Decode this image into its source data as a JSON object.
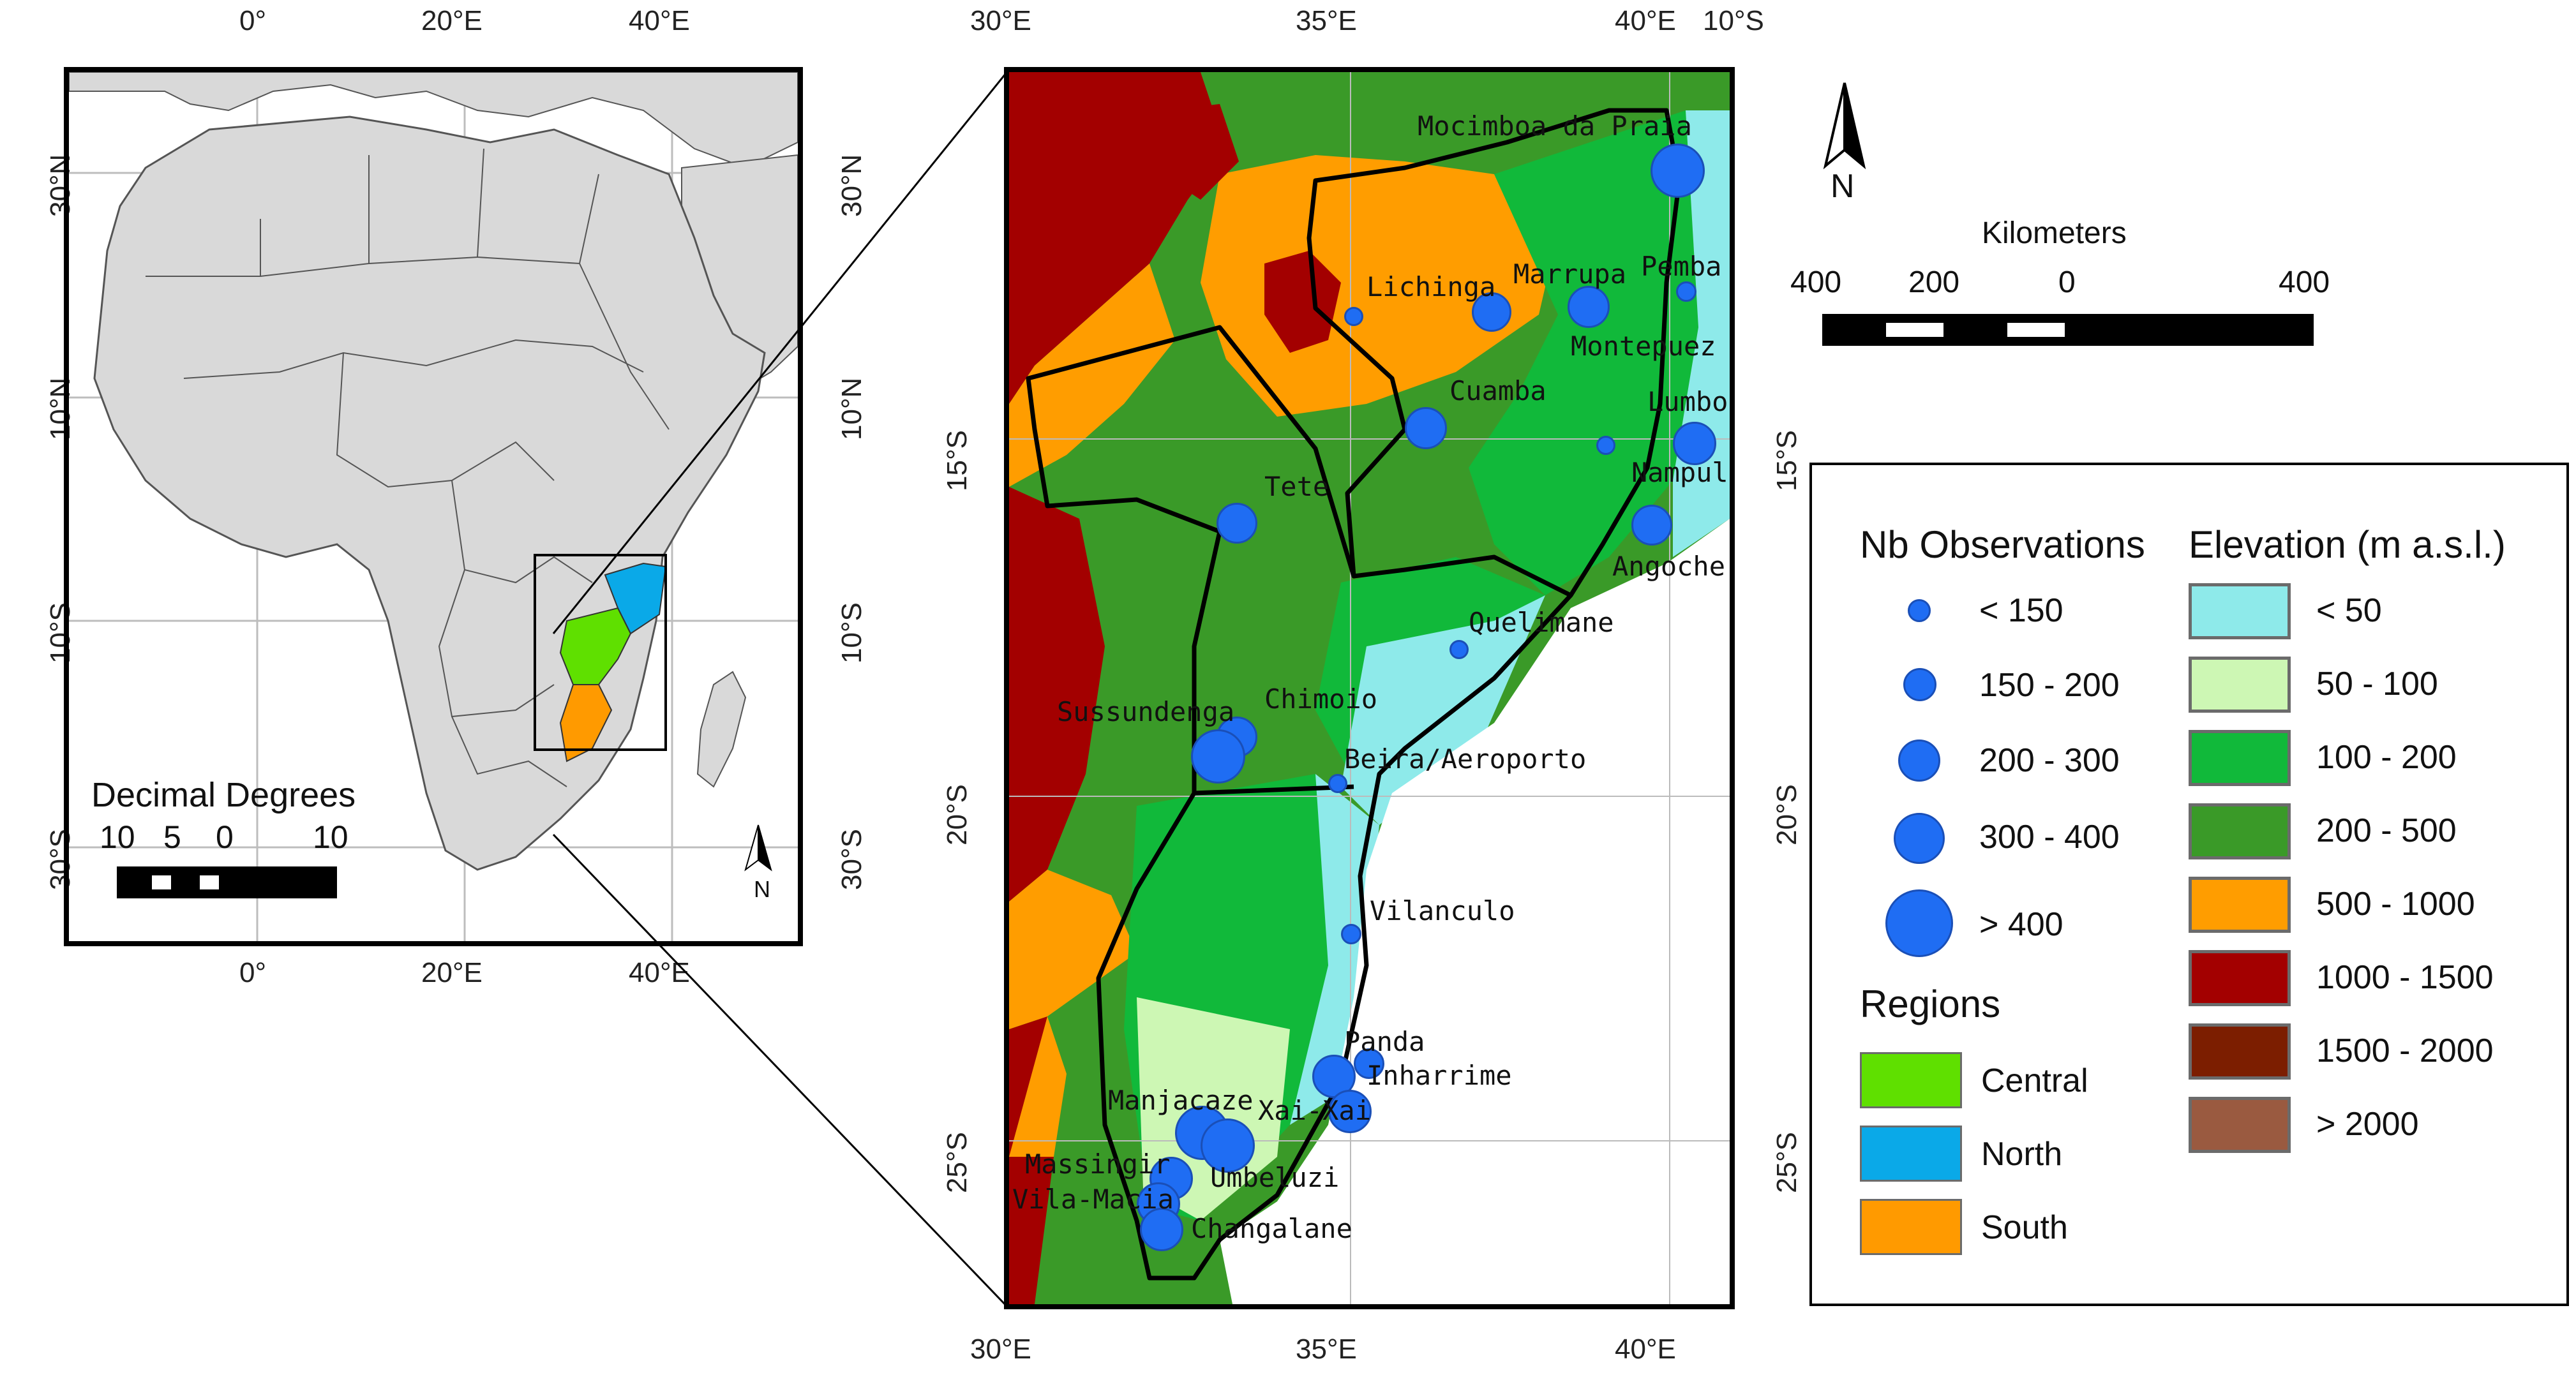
{
  "inset_map": {
    "top_ticks": [
      "0°",
      "20°E",
      "40°E"
    ],
    "bottom_ticks": [
      "0°",
      "20°E",
      "40°E"
    ],
    "left_ticks": [
      "30°N",
      "10°N",
      "10°S",
      "30°S"
    ],
    "right_ticks": [
      "30°N",
      "10°N",
      "10°S",
      "30°S"
    ],
    "scale_title": "Decimal Degrees",
    "scale_labels": [
      "10",
      "5",
      "0",
      "10"
    ],
    "north_label": "N"
  },
  "main_map": {
    "top_ticks": [
      "30°E",
      "35°E",
      "40°E"
    ],
    "bottom_ticks": [
      "30°E",
      "35°E",
      "40°E"
    ],
    "left_ticks": [
      "15°S",
      "20°S",
      "25°S"
    ],
    "right_ticks": [
      "10°S",
      "15°S",
      "20°S",
      "25°S"
    ],
    "stations": [
      {
        "name": "Mocimboa da Praia",
        "obs_class": 4
      },
      {
        "name": "Lichinga",
        "obs_class": 0
      },
      {
        "name": "Marrupa",
        "obs_class": 2
      },
      {
        "name": "Pemba",
        "obs_class": 0
      },
      {
        "name": "Montepuez",
        "obs_class": 2
      },
      {
        "name": "Cuamba",
        "obs_class": 2
      },
      {
        "name": "Lumbo",
        "obs_class": 3
      },
      {
        "name": "Nampula",
        "obs_class": 0
      },
      {
        "name": "Tete",
        "obs_class": 2
      },
      {
        "name": "Angoche",
        "obs_class": 2
      },
      {
        "name": "Quelimane",
        "obs_class": 0
      },
      {
        "name": "Chimoio",
        "obs_class": 2
      },
      {
        "name": "Sussundenga",
        "obs_class": 4
      },
      {
        "name": "Beira/Aeroporto",
        "obs_class": 0
      },
      {
        "name": "Vilanculo",
        "obs_class": 0
      },
      {
        "name": "Panda",
        "obs_class": 1
      },
      {
        "name": "Inharrime",
        "obs_class": 3
      },
      {
        "name": "Manjacaze",
        "obs_class": 4
      },
      {
        "name": "Xai-Xai",
        "obs_class": 3
      },
      {
        "name": "Massingir",
        "obs_class": 3
      },
      {
        "name": "Umbeluzi",
        "obs_class": 4
      },
      {
        "name": "Vila-Macia",
        "obs_class": 3
      },
      {
        "name": "Changalane",
        "obs_class": 3
      }
    ]
  },
  "north_arrow": {
    "label": "N"
  },
  "scale_bar": {
    "title": "Kilometers",
    "labels": [
      "400",
      "200",
      "0",
      "400"
    ]
  },
  "legend": {
    "obs_title": "Nb Observations",
    "obs_classes": [
      "< 150",
      "150 - 200",
      "200 - 300",
      "300 - 400",
      "> 400"
    ],
    "regions_title": "Regions",
    "regions": [
      {
        "label": "Central",
        "color": "#5fe000"
      },
      {
        "label": "North",
        "color": "#0aa9e8"
      },
      {
        "label": "South",
        "color": "#ff9a00"
      }
    ],
    "elevation_title": "Elevation (m a.s.l.)",
    "elevation": [
      {
        "label": "< 50",
        "color": "#8eeaea"
      },
      {
        "label": "50 - 100",
        "color": "#cdf7b4"
      },
      {
        "label": "100 - 200",
        "color": "#11b93a"
      },
      {
        "label": "200 - 500",
        "color": "#3a9a28"
      },
      {
        "label": "500 - 1000",
        "color": "#ff9d00"
      },
      {
        "label": "1000 - 1500",
        "color": "#a30000"
      },
      {
        "label": "1500 - 2000",
        "color": "#7c1e00"
      },
      {
        "label": "> 2000",
        "color": "#9a5a40"
      }
    ],
    "marker_color": "#1f6df3"
  }
}
